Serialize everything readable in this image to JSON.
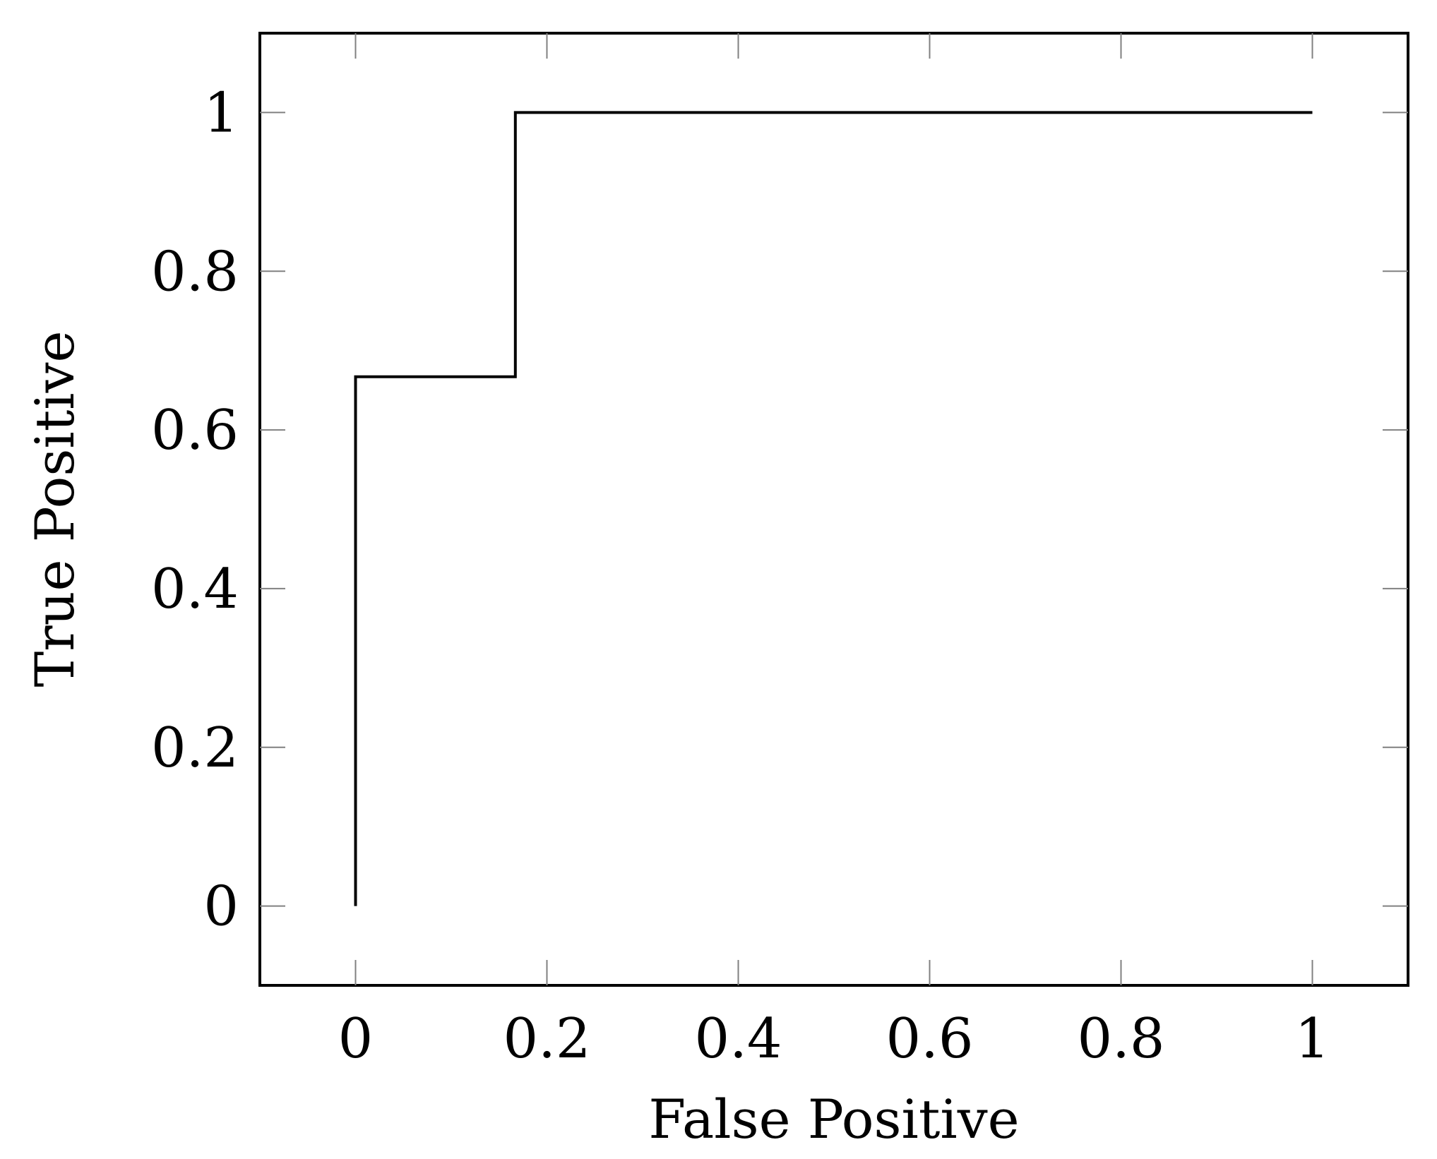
{
  "chart_data": {
    "type": "line",
    "title": "",
    "xlabel": "False Positive",
    "ylabel": "True Positive",
    "xlim": [
      -0.1,
      1.1
    ],
    "ylim": [
      -0.1,
      1.1
    ],
    "x_ticks": [
      0,
      0.2,
      0.4,
      0.6,
      0.8,
      1
    ],
    "x_tick_labels": [
      "0",
      "0.2",
      "0.4",
      "0.6",
      "0.8",
      "1"
    ],
    "y_ticks": [
      0,
      0.2,
      0.4,
      0.6,
      0.8,
      1
    ],
    "y_tick_labels": [
      "0",
      "0.2",
      "0.4",
      "0.6",
      "0.8",
      "1"
    ],
    "grid": false,
    "legend": "none",
    "series": [
      {
        "color": "#000000",
        "points": [
          {
            "x": 0,
            "y": 0
          },
          {
            "x": 0,
            "y": 0.667
          },
          {
            "x": 0.167,
            "y": 0.667
          },
          {
            "x": 0.167,
            "y": 1
          },
          {
            "x": 1,
            "y": 1
          }
        ]
      }
    ]
  }
}
